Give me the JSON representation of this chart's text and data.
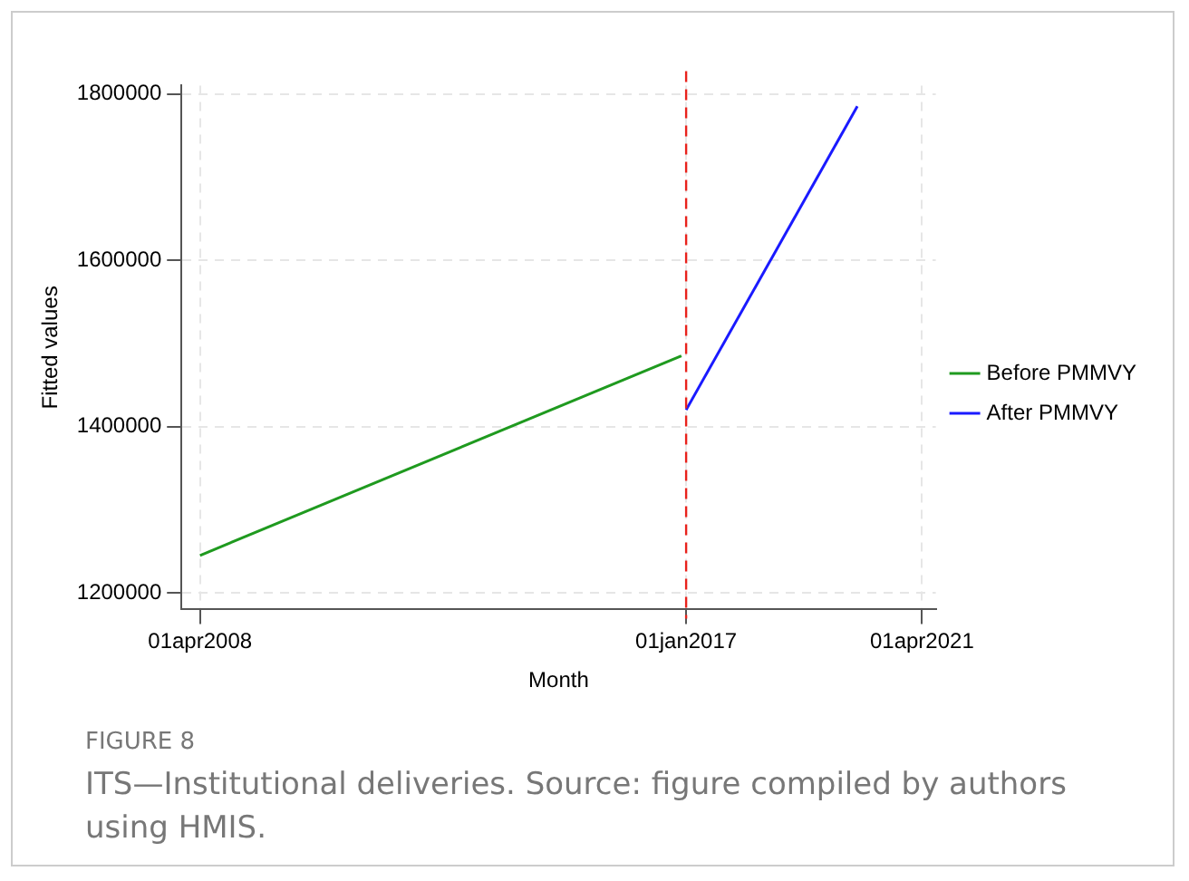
{
  "chart_data": {
    "type": "line",
    "xlabel": "Month",
    "ylabel": "Fitted values",
    "xlim": [
      "2007-12",
      "2021-07"
    ],
    "xticks": [
      {
        "value": "2008-04-01",
        "label": "01apr2008"
      },
      {
        "value": "2017-01-01",
        "label": "01jan2017"
      },
      {
        "value": "2021-04-01",
        "label": "01apr2021"
      }
    ],
    "ylim": [
      1180000,
      1810000
    ],
    "yticks": [
      1200000,
      1400000,
      1600000,
      1800000
    ],
    "series": [
      {
        "name": "Before PMMVY",
        "color": "#1f9a1f",
        "x": [
          "2008-04",
          "2016-12"
        ],
        "values": [
          1245000,
          1485000
        ]
      },
      {
        "name": "After PMMVY",
        "color": "#1a1aff",
        "x": [
          "2017-01",
          "2020-02"
        ],
        "values": [
          1420000,
          1785000
        ]
      }
    ],
    "ref_lines": [
      {
        "axis": "x",
        "value": "2017-01-01",
        "color": "#e8221c",
        "line_style": "dashed"
      }
    ],
    "grid": true,
    "legend": "right",
    "marker": "none",
    "line_style": "solid",
    "annotations": [
      "FIGURE 8",
      "ITS—Institutional deliveries. Source: figure compiled by authors using HMIS."
    ]
  }
}
